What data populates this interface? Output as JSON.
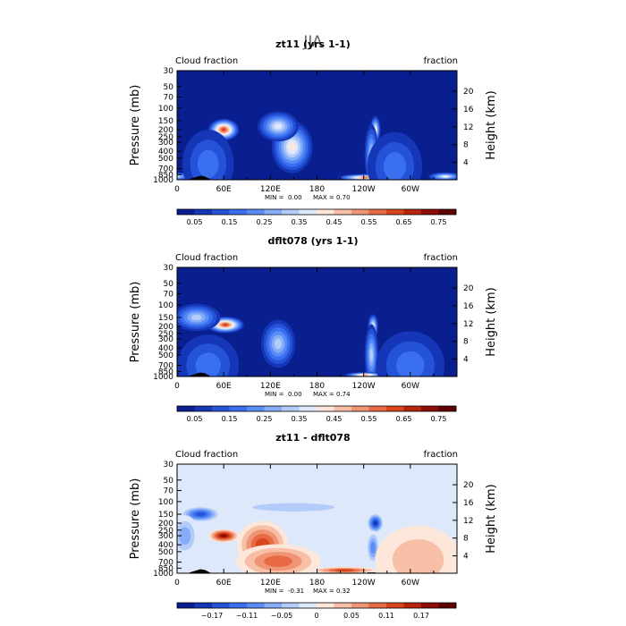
{
  "figure": {
    "title": "JJA"
  },
  "colors": {
    "sequential": [
      "#0a1f8f",
      "#1636b8",
      "#2553d8",
      "#3a6ff0",
      "#5a8cf5",
      "#85acf7",
      "#b3cbf9",
      "#dde8fb",
      "#fde6da",
      "#f6bfa6",
      "#ef9575",
      "#e86a45",
      "#d9451c",
      "#b8240c",
      "#8c0d05",
      "#5e0000"
    ],
    "diverging": [
      "#0a1f8f",
      "#1636b8",
      "#2553d8",
      "#3a6ff0",
      "#5a8cf5",
      "#85acf7",
      "#b3cbf9",
      "#dde8fb",
      "#fde6da",
      "#f6bfa6",
      "#ef9575",
      "#e86a45",
      "#d9451c",
      "#b8240c",
      "#8c0d05",
      "#5e0000"
    ]
  },
  "chart_data": [
    {
      "type": "heatmap",
      "title": "zt11 (yrs 1-1)",
      "left_label": "Cloud fraction",
      "right_label": "fraction",
      "ylabel": "Pressure (mb)",
      "ylabel_right": "Height (km)",
      "x_ticks": [
        "0",
        "60E",
        "120E",
        "180",
        "120W",
        "60W"
      ],
      "y_ticks": [
        "30",
        "50",
        "70",
        "100",
        "150",
        "200",
        "250",
        "300",
        "400",
        "500",
        "700",
        "850",
        "1000"
      ],
      "height_ticks": [
        "20",
        "16",
        "12",
        "8",
        "4"
      ],
      "stats": {
        "min_label": "MIN =",
        "min": "0.00",
        "max_label": "MAX =",
        "max": "0.70"
      },
      "colorbar_labels": [
        "0.05",
        "0.15",
        "0.25",
        "0.35",
        "0.45",
        "0.55",
        "0.65",
        "0.75"
      ],
      "palette": "sequential",
      "features": [
        {
          "lon": 60,
          "p": 200,
          "value": 0.62,
          "sigma_lon": 9,
          "sigma_p": 0.16
        },
        {
          "lon": 148,
          "p": 350,
          "value": 0.4,
          "sigma_lon": 12,
          "sigma_p": 0.38
        },
        {
          "lon": 130,
          "p": 180,
          "value": 0.36,
          "sigma_lon": 12,
          "sigma_p": 0.22
        },
        {
          "lon": 255,
          "p": 200,
          "value": 0.4,
          "sigma_lon": 3,
          "sigma_p": 0.2
        },
        {
          "lon": 250,
          "p": 450,
          "value": 0.3,
          "sigma_lon": 4,
          "sigma_p": 0.45
        },
        {
          "lon": 242,
          "p": 930,
          "value": 0.55,
          "sigma_lon": 16,
          "sigma_p": 0.05
        },
        {
          "lon": 345,
          "p": 900,
          "value": 0.36,
          "sigma_lon": 10,
          "sigma_p": 0.06
        },
        {
          "lon": 0,
          "p": 900,
          "value": 0.3,
          "sigma_lon": 8,
          "sigma_p": 0.06
        },
        {
          "lon": 40,
          "p": 600,
          "value": 0.16,
          "sigma_lon": 15,
          "sigma_p": 0.5
        },
        {
          "lon": 280,
          "p": 650,
          "value": 0.18,
          "sigma_lon": 16,
          "sigma_p": 0.5
        }
      ]
    },
    {
      "type": "heatmap",
      "title": "dflt078 (yrs 1-1)",
      "left_label": "Cloud fraction",
      "right_label": "fraction",
      "ylabel": "Pressure (mb)",
      "ylabel_right": "Height (km)",
      "x_ticks": [
        "0",
        "60E",
        "120E",
        "180",
        "120W",
        "60W"
      ],
      "y_ticks": [
        "30",
        "50",
        "70",
        "100",
        "150",
        "200",
        "250",
        "300",
        "400",
        "500",
        "700",
        "850",
        "1000"
      ],
      "height_ticks": [
        "20",
        "16",
        "12",
        "8",
        "4"
      ],
      "stats": {
        "min_label": "MIN =",
        "min": "0.00",
        "max_label": "MAX =",
        "max": "0.74"
      },
      "colorbar_labels": [
        "0.05",
        "0.15",
        "0.25",
        "0.35",
        "0.45",
        "0.55",
        "0.65",
        "0.75"
      ],
      "palette": "sequential",
      "features": [
        {
          "lon": 62,
          "p": 190,
          "value": 0.66,
          "sigma_lon": 11,
          "sigma_p": 0.12
        },
        {
          "lon": 25,
          "p": 150,
          "value": 0.34,
          "sigma_lon": 14,
          "sigma_p": 0.2
        },
        {
          "lon": 130,
          "p": 350,
          "value": 0.3,
          "sigma_lon": 10,
          "sigma_p": 0.35
        },
        {
          "lon": 252,
          "p": 200,
          "value": 0.42,
          "sigma_lon": 3,
          "sigma_p": 0.18
        },
        {
          "lon": 250,
          "p": 500,
          "value": 0.32,
          "sigma_lon": 4,
          "sigma_p": 0.45
        },
        {
          "lon": 242,
          "p": 950,
          "value": 0.5,
          "sigma_lon": 12,
          "sigma_p": 0.04
        },
        {
          "lon": 40,
          "p": 700,
          "value": 0.18,
          "sigma_lon": 18,
          "sigma_p": 0.45
        },
        {
          "lon": 300,
          "p": 700,
          "value": 0.15,
          "sigma_lon": 20,
          "sigma_p": 0.5
        }
      ]
    },
    {
      "type": "heatmap",
      "title": "zt11 - dflt078",
      "left_label": "Cloud fraction",
      "right_label": "fraction",
      "ylabel": "Pressure (mb)",
      "ylabel_right": "Height (km)",
      "x_ticks": [
        "0",
        "60E",
        "120E",
        "180",
        "120W",
        "60W"
      ],
      "y_ticks": [
        "30",
        "50",
        "70",
        "100",
        "150",
        "200",
        "250",
        "300",
        "400",
        "500",
        "700",
        "850",
        "1000"
      ],
      "height_ticks": [
        "20",
        "16",
        "12",
        "8",
        "4"
      ],
      "stats": {
        "min_label": "MIN =",
        "min": "-0.31",
        "max_label": "MAX =",
        "max": "0.32"
      },
      "colorbar_labels": [
        "−0.17",
        "−0.11",
        "−0.05",
        "0",
        "0.05",
        "0.11",
        "0.17"
      ],
      "palette": "diverging",
      "features": [
        {
          "lon": 60,
          "p": 300,
          "value": 0.28,
          "sigma_lon": 9,
          "sigma_p": 0.1
        },
        {
          "lon": 110,
          "p": 400,
          "value": 0.18,
          "sigma_lon": 15,
          "sigma_p": 0.35
        },
        {
          "lon": 130,
          "p": 680,
          "value": 0.14,
          "sigma_lon": 25,
          "sigma_p": 0.25
        },
        {
          "lon": 30,
          "p": 150,
          "value": -0.24,
          "sigma_lon": 12,
          "sigma_p": 0.12
        },
        {
          "lon": 255,
          "p": 200,
          "value": -0.28,
          "sigma_lon": 5,
          "sigma_p": 0.15
        },
        {
          "lon": 252,
          "p": 440,
          "value": -0.16,
          "sigma_lon": 4,
          "sigma_p": 0.25
        },
        {
          "lon": 345,
          "p": 920,
          "value": 0.28,
          "sigma_lon": 8,
          "sigma_p": 0.06
        },
        {
          "lon": 215,
          "p": 910,
          "value": 0.2,
          "sigma_lon": 20,
          "sigma_p": 0.05
        },
        {
          "lon": 10,
          "p": 300,
          "value": -0.1,
          "sigma_lon": 8,
          "sigma_p": 0.3
        },
        {
          "lon": 150,
          "p": 120,
          "value": -0.09,
          "sigma_lon": 40,
          "sigma_p": 0.1
        },
        {
          "lon": 310,
          "p": 650,
          "value": 0.08,
          "sigma_lon": 25,
          "sigma_p": 0.5
        }
      ]
    }
  ]
}
